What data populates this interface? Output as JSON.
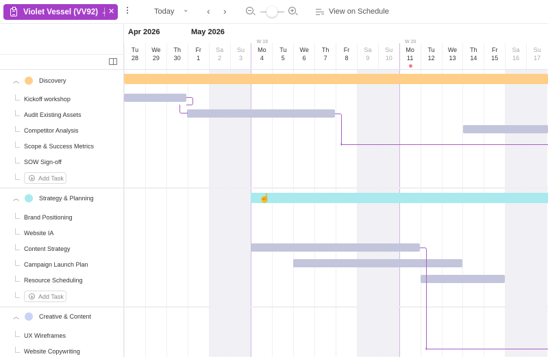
{
  "toolbar": {
    "project_label": "Violet Vessel (VV92)",
    "project_color": "#a53fc8",
    "project_icon": "clipboard-icon",
    "project_chevron": "⌄",
    "close_icon": "✕",
    "more_icon": "kebab-icon",
    "today_label": "Today",
    "today_chevron": "⌄",
    "prev_icon": "‹",
    "next_icon": "›",
    "zoom_out_icon": "zoom-out-icon",
    "zoom_in_icon": "zoom-in-icon",
    "view_on_schedule_label": "View on Schedule"
  },
  "timeline": {
    "months": [
      {
        "label": "Apr 2026",
        "x": 6
      },
      {
        "label": "May 2026",
        "x": 98
      }
    ],
    "days": [
      {
        "dn": "Tu",
        "dd": "28"
      },
      {
        "dn": "We",
        "dd": "29"
      },
      {
        "dn": "Th",
        "dd": "30"
      },
      {
        "dn": "Fr",
        "dd": "1"
      },
      {
        "dn": "Sa",
        "dd": "2",
        "weekend": true
      },
      {
        "dn": "Su",
        "dd": "3",
        "weekend": true
      },
      {
        "dn": "Mo",
        "dd": "4",
        "week": "W 19"
      },
      {
        "dn": "Tu",
        "dd": "5"
      },
      {
        "dn": "We",
        "dd": "6"
      },
      {
        "dn": "Th",
        "dd": "7"
      },
      {
        "dn": "Fr",
        "dd": "8"
      },
      {
        "dn": "Sa",
        "dd": "9",
        "weekend": true
      },
      {
        "dn": "Su",
        "dd": "10",
        "weekend": true
      },
      {
        "dn": "Mo",
        "dd": "11",
        "week": "W 20",
        "today": true
      },
      {
        "dn": "Tu",
        "dd": "12"
      },
      {
        "dn": "We",
        "dd": "13"
      },
      {
        "dn": "Th",
        "dd": "14"
      },
      {
        "dn": "Fr",
        "dd": "15"
      },
      {
        "dn": "Sa",
        "dd": "16",
        "weekend": true
      },
      {
        "dn": "Su",
        "dd": "17",
        "weekend": true
      }
    ]
  },
  "groups": [
    {
      "label": "Discovery",
      "color": "#ffcf8a",
      "tasks": [
        "Kickoff workshop",
        "Audit Existing Assets",
        "Competitor Analysis",
        "Scope & Success Metrics",
        "SOW Sign-off"
      ],
      "add_label": "Add Task"
    },
    {
      "label": "Strategy & Planning",
      "color": "#a8eaee",
      "tasks": [
        "Brand Positioning",
        "Website IA",
        "Content Strategy",
        "Campaign Launch Plan",
        "Resource Scheduling"
      ],
      "add_label": "Add Task"
    },
    {
      "label": "Creative & Content",
      "color": "#c8d4f6",
      "tasks": [
        "UX Wireframes",
        "Website Copywriting"
      ]
    }
  ],
  "colors": {
    "task_bar": "#c3c5dc",
    "dependency_line": "#a660c4",
    "weekend_bg": "#f1f0f4",
    "today_dot": "#f07a8a"
  }
}
